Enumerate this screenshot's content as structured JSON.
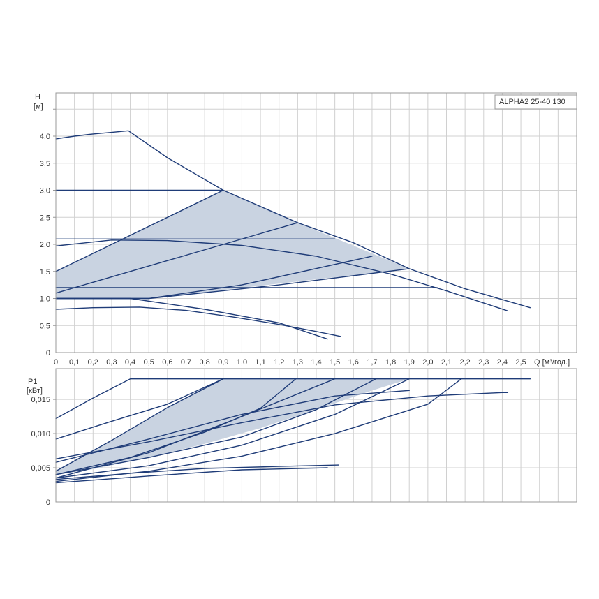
{
  "chart_data": [
    {
      "type": "line",
      "ylabel": "H",
      "yunit": "[м]",
      "xlabel": "Q [м³/год.]",
      "legend_label": "ALPHA2 25-40 130",
      "legend_placement": "top-right",
      "xlim": [
        0,
        2.8
      ],
      "ylim": [
        0,
        4.8
      ],
      "grid": true,
      "x_ticks": [
        0,
        0.1,
        0.2,
        0.3,
        0.4,
        0.5,
        0.6,
        0.7,
        0.8,
        0.9,
        1.0,
        1.1,
        1.2,
        1.3,
        1.4,
        1.5,
        1.6,
        1.7,
        1.8,
        1.9,
        2.0,
        2.1,
        2.2,
        2.3,
        2.4,
        2.5
      ],
      "x_tick_labels": [
        "0",
        "0,1",
        "0,2",
        "0,3",
        "0,4",
        "0,5",
        "0,6",
        "0,7",
        "0,8",
        "0,9",
        "1,0",
        "1,1",
        "1,2",
        "1,3",
        "1,4",
        "1,5",
        "1,6",
        "1,7",
        "1,8",
        "1,9",
        "2,0",
        "2,1",
        "2,2",
        "2,3",
        "2,4",
        "2,5"
      ],
      "y_ticks": [
        0,
        0.5,
        1.0,
        1.5,
        2.0,
        2.5,
        3.0,
        3.5,
        4.0
      ],
      "y_tick_labels": [
        "0",
        "0,5",
        "1,0",
        "1,5",
        "2,0",
        "2,5",
        "3,0",
        "3,5",
        "4,0"
      ],
      "shaded_region": [
        [
          0,
          1.5
        ],
        [
          0.9,
          3.0
        ],
        [
          1.3,
          2.4
        ],
        [
          1.9,
          1.55
        ],
        [
          0.5,
          1.0
        ],
        [
          0,
          1.0
        ]
      ],
      "series": [
        {
          "points": [
            [
              0,
              3.95
            ],
            [
              0.1,
              4.0
            ],
            [
              0.2,
              4.04
            ],
            [
              0.3,
              4.07
            ],
            [
              0.39,
              4.1
            ],
            [
              0.6,
              3.6
            ],
            [
              0.9,
              3.0
            ],
            [
              1.3,
              2.4
            ],
            [
              1.6,
              2.03
            ],
            [
              1.9,
              1.55
            ],
            [
              2.2,
              1.18
            ],
            [
              2.55,
              0.83
            ]
          ]
        },
        {
          "points": [
            [
              0,
              3.0
            ],
            [
              0.9,
              3.0
            ]
          ]
        },
        {
          "points": [
            [
              0,
              2.1
            ],
            [
              1.5,
              2.1
            ]
          ]
        },
        {
          "points": [
            [
              0,
              1.2
            ],
            [
              2.05,
              1.2
            ]
          ]
        },
        {
          "points": [
            [
              0,
              1.5
            ],
            [
              0.9,
              3.0
            ]
          ]
        },
        {
          "points": [
            [
              0,
              1.1
            ],
            [
              1.3,
              2.4
            ]
          ]
        },
        {
          "points": [
            [
              0,
              1.0
            ],
            [
              0.5,
              1.0
            ],
            [
              1.0,
              1.25
            ],
            [
              1.7,
              1.78
            ]
          ]
        },
        {
          "points": [
            [
              0,
              1.0
            ],
            [
              0.5,
              1.0
            ],
            [
              1.2,
              1.25
            ],
            [
              1.9,
              1.55
            ]
          ]
        },
        {
          "points": [
            [
              0,
              1.97
            ],
            [
              0.3,
              2.08
            ],
            [
              0.6,
              2.07
            ],
            [
              1.0,
              1.98
            ],
            [
              1.4,
              1.78
            ],
            [
              1.8,
              1.45
            ],
            [
              2.1,
              1.14
            ],
            [
              2.43,
              0.77
            ]
          ]
        },
        {
          "points": [
            [
              0,
              1.0
            ],
            [
              0.4,
              1.0
            ],
            [
              0.8,
              0.8
            ],
            [
              1.2,
              0.55
            ],
            [
              1.46,
              0.25
            ]
          ]
        },
        {
          "points": [
            [
              0,
              0.8
            ],
            [
              0.2,
              0.83
            ],
            [
              0.45,
              0.84
            ],
            [
              0.7,
              0.78
            ],
            [
              0.95,
              0.66
            ],
            [
              1.2,
              0.52
            ],
            [
              1.4,
              0.39
            ],
            [
              1.53,
              0.3
            ]
          ]
        }
      ]
    },
    {
      "type": "line",
      "ylabel": "P1",
      "yunit": "[кВт]",
      "xlim": [
        0,
        2.8
      ],
      "ylim": [
        0,
        0.0195
      ],
      "grid": true,
      "x_ticks": [
        0,
        0.1,
        0.2,
        0.3,
        0.4,
        0.5,
        0.6,
        0.7,
        0.8,
        0.9,
        1.0,
        1.1,
        1.2,
        1.3,
        1.4,
        1.5,
        1.6,
        1.7,
        1.8,
        1.9,
        2.0,
        2.1,
        2.2,
        2.3,
        2.4,
        2.5
      ],
      "y_ticks": [
        0,
        0.005,
        0.01,
        0.015
      ],
      "y_tick_labels": [
        "0",
        "0,005",
        "0,010",
        "0,015"
      ],
      "shaded_region": [
        [
          0,
          0.0045
        ],
        [
          0.3,
          0.009
        ],
        [
          0.6,
          0.0138
        ],
        [
          0.9,
          0.018
        ],
        [
          1.9,
          0.018
        ],
        [
          1.7,
          0.0163
        ],
        [
          1.4,
          0.0135
        ],
        [
          1.1,
          0.0108
        ],
        [
          0.8,
          0.0085
        ],
        [
          0.5,
          0.0065
        ],
        [
          0.2,
          0.0048
        ],
        [
          0,
          0.004
        ]
      ],
      "series": [
        {
          "points": [
            [
              0,
              0.0122
            ],
            [
              0.2,
              0.0152
            ],
            [
              0.4,
              0.018
            ],
            [
              2.55,
              0.018
            ]
          ]
        },
        {
          "points": [
            [
              0,
              0.0092
            ],
            [
              0.3,
              0.0118
            ],
            [
              0.6,
              0.0143
            ],
            [
              0.9,
              0.018
            ]
          ]
        },
        {
          "points": [
            [
              0,
              0.0045
            ],
            [
              0.3,
              0.009
            ],
            [
              0.6,
              0.0138
            ],
            [
              0.9,
              0.018
            ]
          ]
        },
        {
          "points": [
            [
              0,
              0.004
            ],
            [
              0.4,
              0.0065
            ],
            [
              0.8,
              0.0102
            ],
            [
              1.1,
              0.0137
            ],
            [
              1.29,
              0.018
            ]
          ]
        },
        {
          "points": [
            [
              0,
              0.0035
            ],
            [
              0.5,
              0.0072
            ],
            [
              1.0,
              0.0125
            ],
            [
              1.5,
              0.018
            ]
          ]
        },
        {
          "points": [
            [
              0,
              0.004
            ],
            [
              0.5,
              0.0065
            ],
            [
              1.0,
              0.0095
            ],
            [
              1.4,
              0.0135
            ],
            [
              1.72,
              0.018
            ]
          ]
        },
        {
          "points": [
            [
              0,
              0.0035
            ],
            [
              0.5,
              0.0053
            ],
            [
              1.0,
              0.0083
            ],
            [
              1.5,
              0.0128
            ],
            [
              1.9,
              0.018
            ]
          ]
        },
        {
          "points": [
            [
              0,
              0.003
            ],
            [
              0.5,
              0.0045
            ],
            [
              1.0,
              0.0067
            ],
            [
              1.5,
              0.01
            ],
            [
              2.0,
              0.0143
            ],
            [
              2.18,
              0.018
            ]
          ]
        },
        {
          "points": [
            [
              0,
              0.0063
            ],
            [
              0.5,
              0.0088
            ],
            [
              1.0,
              0.0116
            ],
            [
              1.5,
              0.0142
            ],
            [
              2.0,
              0.0155
            ],
            [
              2.4,
              0.016
            ],
            [
              2.43,
              0.016
            ]
          ]
        },
        {
          "points": [
            [
              0,
              0.0058
            ],
            [
              0.5,
              0.0092
            ],
            [
              1.0,
              0.0128
            ],
            [
              1.5,
              0.0155
            ],
            [
              1.9,
              0.0163
            ]
          ]
        },
        {
          "points": [
            [
              0,
              0.0033
            ],
            [
              0.4,
              0.0042
            ],
            [
              0.8,
              0.0049
            ],
            [
              1.2,
              0.0052
            ],
            [
              1.52,
              0.0054
            ]
          ]
        },
        {
          "points": [
            [
              0,
              0.0028
            ],
            [
              0.5,
              0.0038
            ],
            [
              1.0,
              0.0047
            ],
            [
              1.46,
              0.005
            ]
          ]
        }
      ]
    }
  ]
}
